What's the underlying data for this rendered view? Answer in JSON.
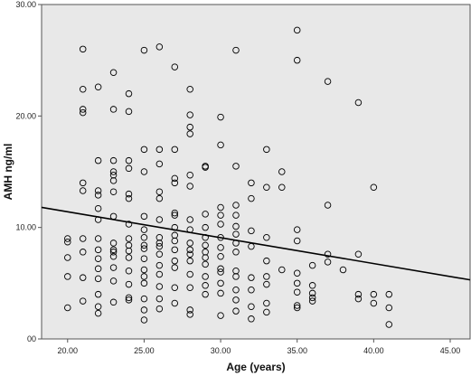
{
  "chart_data": {
    "type": "scatter",
    "xlabel": "Age (years)",
    "ylabel": "AMH ng/ml",
    "xlim": [
      18.3,
      46.3
    ],
    "ylim": [
      0,
      30
    ],
    "x_ticks": [
      "20.00",
      "25.00",
      "30.00",
      "35.00",
      "40.00",
      "45.00"
    ],
    "y_ticks": [
      "00",
      "10.00",
      "20.00",
      "30.00"
    ],
    "grid": false,
    "background": "#e8e8e8",
    "marker": "hollow-circle",
    "colors": {
      "plot_background": "#e8e8e8",
      "points": "#000000",
      "fit_line": "#000000"
    },
    "fit_line": {
      "x": [
        18.3,
        46.3
      ],
      "y": [
        11.8,
        5.3
      ]
    },
    "points": [
      [
        20,
        9.0
      ],
      [
        20,
        8.7
      ],
      [
        20,
        7.3
      ],
      [
        20,
        5.6
      ],
      [
        20,
        2.8
      ],
      [
        21,
        26.0
      ],
      [
        21,
        22.4
      ],
      [
        21,
        20.6
      ],
      [
        21,
        20.3
      ],
      [
        21,
        14.0
      ],
      [
        21,
        13.3
      ],
      [
        21,
        9.0
      ],
      [
        21,
        7.8
      ],
      [
        21,
        5.5
      ],
      [
        21,
        3.4
      ],
      [
        22,
        22.6
      ],
      [
        22,
        16.0
      ],
      [
        22,
        13.3
      ],
      [
        22,
        12.9
      ],
      [
        22,
        11.7
      ],
      [
        22,
        10.7
      ],
      [
        22,
        9.0
      ],
      [
        22,
        8.0
      ],
      [
        22,
        7.2
      ],
      [
        22,
        6.3
      ],
      [
        22,
        5.4
      ],
      [
        22,
        4.0
      ],
      [
        22,
        2.9
      ],
      [
        22,
        2.3
      ],
      [
        23,
        23.9
      ],
      [
        23,
        20.6
      ],
      [
        23,
        16.0
      ],
      [
        23,
        15.0
      ],
      [
        23,
        14.7
      ],
      [
        23,
        14.2
      ],
      [
        23,
        13.2
      ],
      [
        23,
        11.0
      ],
      [
        23,
        8.6
      ],
      [
        23,
        8.0
      ],
      [
        23,
        7.8
      ],
      [
        23,
        7.4
      ],
      [
        23,
        6.4
      ],
      [
        23,
        5.2
      ],
      [
        23,
        3.3
      ],
      [
        24,
        22.0
      ],
      [
        24,
        20.4
      ],
      [
        24,
        16.0
      ],
      [
        24,
        15.3
      ],
      [
        24,
        13.0
      ],
      [
        24,
        12.6
      ],
      [
        24,
        10.3
      ],
      [
        24,
        9.0
      ],
      [
        24,
        8.4
      ],
      [
        24,
        7.9
      ],
      [
        24,
        7.3
      ],
      [
        24,
        6.1
      ],
      [
        24,
        4.9
      ],
      [
        24,
        3.7
      ],
      [
        24,
        3.5
      ],
      [
        25,
        25.9
      ],
      [
        25,
        17.0
      ],
      [
        25,
        15.0
      ],
      [
        25,
        11.0
      ],
      [
        25,
        9.8
      ],
      [
        25,
        9.1
      ],
      [
        25,
        8.4
      ],
      [
        25,
        8.1
      ],
      [
        25,
        7.2
      ],
      [
        25,
        6.2
      ],
      [
        25,
        5.6
      ],
      [
        25,
        5.0
      ],
      [
        25,
        3.6
      ],
      [
        25,
        2.6
      ],
      [
        25,
        1.7
      ],
      [
        26,
        26.2
      ],
      [
        26,
        17.0
      ],
      [
        26,
        15.7
      ],
      [
        26,
        13.2
      ],
      [
        26,
        12.6
      ],
      [
        26,
        10.7
      ],
      [
        26,
        9.1
      ],
      [
        26,
        8.6
      ],
      [
        26,
        8.3
      ],
      [
        26,
        7.6
      ],
      [
        26,
        6.6
      ],
      [
        26,
        5.8
      ],
      [
        26,
        4.7
      ],
      [
        26,
        3.6
      ],
      [
        26,
        2.7
      ],
      [
        27,
        24.4
      ],
      [
        27,
        17.0
      ],
      [
        27,
        14.4
      ],
      [
        27,
        14.0
      ],
      [
        27,
        11.3
      ],
      [
        27,
        11.1
      ],
      [
        27,
        10.0
      ],
      [
        27,
        9.3
      ],
      [
        27,
        8.8
      ],
      [
        27,
        8.0
      ],
      [
        27,
        7.0
      ],
      [
        27,
        6.4
      ],
      [
        27,
        4.6
      ],
      [
        27,
        3.2
      ],
      [
        28,
        22.4
      ],
      [
        28,
        20.1
      ],
      [
        28,
        19.0
      ],
      [
        28,
        18.4
      ],
      [
        28,
        14.7
      ],
      [
        28,
        13.7
      ],
      [
        28,
        10.7
      ],
      [
        28,
        9.8
      ],
      [
        28,
        8.6
      ],
      [
        28,
        8.0
      ],
      [
        28,
        7.6
      ],
      [
        28,
        7.0
      ],
      [
        28,
        5.8
      ],
      [
        28,
        4.6
      ],
      [
        28,
        2.6
      ],
      [
        28,
        2.2
      ],
      [
        29,
        15.5
      ],
      [
        29,
        15.4
      ],
      [
        29,
        11.2
      ],
      [
        29,
        10.0
      ],
      [
        29,
        9.1
      ],
      [
        29,
        8.4
      ],
      [
        29,
        7.8
      ],
      [
        29,
        7.3
      ],
      [
        29,
        6.7
      ],
      [
        29,
        5.6
      ],
      [
        29,
        4.8
      ],
      [
        29,
        4.0
      ],
      [
        30,
        19.9
      ],
      [
        30,
        17.4
      ],
      [
        30,
        11.8
      ],
      [
        30,
        11.1
      ],
      [
        30,
        10.3
      ],
      [
        30,
        9.1
      ],
      [
        30,
        8.2
      ],
      [
        30,
        7.4
      ],
      [
        30,
        6.3
      ],
      [
        30,
        6.0
      ],
      [
        30,
        5.0
      ],
      [
        30,
        4.1
      ],
      [
        30,
        2.1
      ],
      [
        31,
        25.9
      ],
      [
        31,
        15.5
      ],
      [
        31,
        12.0
      ],
      [
        31,
        11.1
      ],
      [
        31,
        10.1
      ],
      [
        31,
        9.4
      ],
      [
        31,
        8.6
      ],
      [
        31,
        7.8
      ],
      [
        31,
        6.1
      ],
      [
        31,
        5.6
      ],
      [
        31,
        4.4
      ],
      [
        31,
        3.5
      ],
      [
        31,
        2.5
      ],
      [
        32,
        14.0
      ],
      [
        32,
        12.6
      ],
      [
        32,
        9.7
      ],
      [
        32,
        8.3
      ],
      [
        32,
        5.5
      ],
      [
        32,
        4.4
      ],
      [
        32,
        2.9
      ],
      [
        32,
        1.8
      ],
      [
        33,
        17.0
      ],
      [
        33,
        13.6
      ],
      [
        33,
        9.1
      ],
      [
        33,
        7.0
      ],
      [
        33,
        5.6
      ],
      [
        33,
        4.9
      ],
      [
        33,
        3.2
      ],
      [
        33,
        2.4
      ],
      [
        34,
        15.0
      ],
      [
        34,
        13.6
      ],
      [
        34,
        6.2
      ],
      [
        35,
        27.7
      ],
      [
        35,
        25.0
      ],
      [
        35,
        9.8
      ],
      [
        35,
        8.8
      ],
      [
        35,
        5.9
      ],
      [
        35,
        5.0
      ],
      [
        35,
        4.2
      ],
      [
        35,
        3.0
      ],
      [
        35,
        2.8
      ],
      [
        36,
        6.6
      ],
      [
        36,
        4.8
      ],
      [
        36,
        4.1
      ],
      [
        36,
        3.7
      ],
      [
        36,
        3.4
      ],
      [
        37,
        23.1
      ],
      [
        37,
        12.0
      ],
      [
        37,
        7.6
      ],
      [
        37,
        6.9
      ],
      [
        38,
        6.2
      ],
      [
        39,
        21.2
      ],
      [
        39,
        7.6
      ],
      [
        39,
        4.0
      ],
      [
        39,
        3.6
      ],
      [
        40,
        13.6
      ],
      [
        40,
        4.0
      ],
      [
        40,
        3.2
      ],
      [
        41,
        4.0
      ],
      [
        41,
        2.8
      ],
      [
        41,
        1.3
      ]
    ]
  }
}
